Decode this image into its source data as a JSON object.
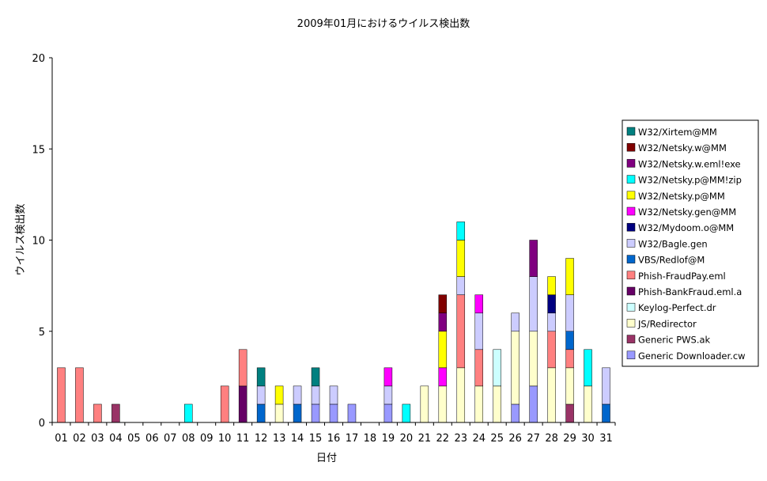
{
  "chart_data": {
    "type": "bar",
    "stacked": true,
    "title": "2009年01月におけるウイルス検出数",
    "xlabel": "日付",
    "ylabel": "ウイルス検出数",
    "ylim": [
      0,
      20
    ],
    "yticks": [
      0,
      5,
      10,
      15,
      20
    ],
    "grid": false,
    "legend_position": "right",
    "categories": [
      "01",
      "02",
      "03",
      "04",
      "05",
      "06",
      "07",
      "08",
      "09",
      "10",
      "11",
      "12",
      "13",
      "14",
      "15",
      "16",
      "17",
      "18",
      "19",
      "20",
      "21",
      "22",
      "23",
      "24",
      "25",
      "26",
      "27",
      "28",
      "29",
      "30",
      "31"
    ],
    "series": [
      {
        "name": "Generic Downloader.cw",
        "color": "#9999ff",
        "values": [
          0,
          0,
          0,
          0,
          0,
          0,
          0,
          0,
          0,
          0,
          0,
          0,
          0,
          0,
          1,
          1,
          1,
          0,
          1,
          0,
          0,
          0,
          0,
          0,
          0,
          1,
          2,
          0,
          0,
          0,
          0
        ]
      },
      {
        "name": "Generic PWS.ak",
        "color": "#993366",
        "values": [
          0,
          0,
          0,
          1,
          0,
          0,
          0,
          0,
          0,
          0,
          0,
          0,
          0,
          0,
          0,
          0,
          0,
          0,
          0,
          0,
          0,
          0,
          0,
          0,
          0,
          0,
          0,
          0,
          1,
          0,
          0
        ]
      },
      {
        "name": "JS/Redirector",
        "color": "#ffffcc",
        "values": [
          0,
          0,
          0,
          0,
          0,
          0,
          0,
          0,
          0,
          0,
          0,
          0,
          1,
          0,
          0,
          0,
          0,
          0,
          0,
          0,
          2,
          2,
          3,
          2,
          2,
          4,
          3,
          3,
          2,
          2,
          0
        ]
      },
      {
        "name": "Keylog-Perfect.dr",
        "color": "#ccffff",
        "values": [
          0,
          0,
          0,
          0,
          0,
          0,
          0,
          0,
          0,
          0,
          0,
          0,
          0,
          0,
          0,
          0,
          0,
          0,
          0,
          0,
          0,
          0,
          0,
          0,
          2,
          0,
          0,
          0,
          0,
          0,
          0
        ]
      },
      {
        "name": "Phish-BankFraud.eml.a",
        "color": "#660066",
        "values": [
          0,
          0,
          0,
          0,
          0,
          0,
          0,
          0,
          0,
          0,
          2,
          0,
          0,
          0,
          0,
          0,
          0,
          0,
          0,
          0,
          0,
          0,
          0,
          0,
          0,
          0,
          0,
          0,
          0,
          0,
          0
        ]
      },
      {
        "name": "Phish-FraudPay.eml",
        "color": "#ff8080",
        "values": [
          3,
          3,
          1,
          0,
          0,
          0,
          0,
          0,
          0,
          2,
          2,
          0,
          0,
          0,
          0,
          0,
          0,
          0,
          0,
          0,
          0,
          0,
          4,
          2,
          0,
          0,
          0,
          2,
          1,
          0,
          0
        ]
      },
      {
        "name": "VBS/Redlof@M",
        "color": "#0066cc",
        "values": [
          0,
          0,
          0,
          0,
          0,
          0,
          0,
          0,
          0,
          0,
          0,
          1,
          0,
          1,
          0,
          0,
          0,
          0,
          0,
          0,
          0,
          0,
          0,
          0,
          0,
          0,
          0,
          0,
          1,
          0,
          1
        ]
      },
      {
        "name": "W32/Bagle.gen",
        "color": "#ccccff",
        "values": [
          0,
          0,
          0,
          0,
          0,
          0,
          0,
          0,
          0,
          0,
          0,
          1,
          0,
          1,
          1,
          1,
          0,
          0,
          1,
          0,
          0,
          0,
          1,
          2,
          0,
          1,
          3,
          1,
          2,
          0,
          2
        ]
      },
      {
        "name": "W32/Mydoom.o@MM",
        "color": "#000080",
        "values": [
          0,
          0,
          0,
          0,
          0,
          0,
          0,
          0,
          0,
          0,
          0,
          0,
          0,
          0,
          0,
          0,
          0,
          0,
          0,
          0,
          0,
          0,
          0,
          0,
          0,
          0,
          0,
          1,
          0,
          0,
          0
        ]
      },
      {
        "name": "W32/Netsky.gen@MM",
        "color": "#ff00ff",
        "values": [
          0,
          0,
          0,
          0,
          0,
          0,
          0,
          0,
          0,
          0,
          0,
          0,
          0,
          0,
          0,
          0,
          0,
          0,
          1,
          0,
          0,
          1,
          0,
          1,
          0,
          0,
          0,
          0,
          0,
          0,
          0
        ]
      },
      {
        "name": "W32/Netsky.p@MM",
        "color": "#ffff00",
        "values": [
          0,
          0,
          0,
          0,
          0,
          0,
          0,
          0,
          0,
          0,
          0,
          0,
          1,
          0,
          0,
          0,
          0,
          0,
          0,
          0,
          0,
          2,
          2,
          0,
          0,
          0,
          0,
          1,
          2,
          0,
          0
        ]
      },
      {
        "name": "W32/Netsky.p@MM!zip",
        "color": "#00ffff",
        "values": [
          0,
          0,
          0,
          0,
          0,
          0,
          0,
          1,
          0,
          0,
          0,
          0,
          0,
          0,
          0,
          0,
          0,
          0,
          0,
          1,
          0,
          0,
          1,
          0,
          0,
          0,
          0,
          0,
          0,
          2,
          0
        ]
      },
      {
        "name": "W32/Netsky.w.eml!exe",
        "color": "#800080",
        "values": [
          0,
          0,
          0,
          0,
          0,
          0,
          0,
          0,
          0,
          0,
          0,
          0,
          0,
          0,
          0,
          0,
          0,
          0,
          0,
          0,
          0,
          1,
          0,
          0,
          0,
          0,
          2,
          0,
          0,
          0,
          0
        ]
      },
      {
        "name": "W32/Netsky.w@MM",
        "color": "#800000",
        "values": [
          0,
          0,
          0,
          0,
          0,
          0,
          0,
          0,
          0,
          0,
          0,
          0,
          0,
          0,
          0,
          0,
          0,
          0,
          0,
          0,
          0,
          1,
          0,
          0,
          0,
          0,
          0,
          0,
          0,
          0,
          0
        ]
      },
      {
        "name": "W32/Xirtem@MM",
        "color": "#008080",
        "values": [
          0,
          0,
          0,
          0,
          0,
          0,
          0,
          0,
          0,
          0,
          0,
          1,
          0,
          0,
          1,
          0,
          0,
          0,
          0,
          0,
          0,
          0,
          0,
          0,
          0,
          0,
          0,
          0,
          0,
          0,
          0
        ]
      }
    ]
  }
}
